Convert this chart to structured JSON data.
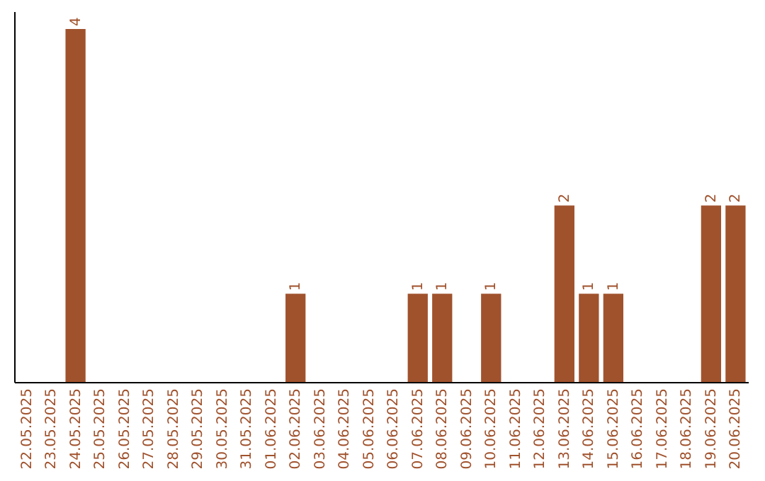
{
  "chart_data": {
    "type": "bar",
    "categories": [
      "22.05.2025",
      "23.05.2025",
      "24.05.2025",
      "25.05.2025",
      "26.05.2025",
      "27.05.2025",
      "28.05.2025",
      "29.05.2025",
      "30.05.2025",
      "31.05.2025",
      "01.06.2025",
      "02.06.2025",
      "03.06.2025",
      "04.06.2025",
      "05.06.2025",
      "06.06.2025",
      "07.06.2025",
      "08.06.2025",
      "09.06.2025",
      "10.06.2025",
      "11.06.2025",
      "12.06.2025",
      "13.06.2025",
      "14.06.2025",
      "15.06.2025",
      "16.06.2025",
      "17.06.2025",
      "18.06.2025",
      "19.06.2025",
      "20.06.2025"
    ],
    "values": [
      0,
      0,
      4,
      0,
      0,
      0,
      0,
      0,
      0,
      0,
      0,
      1,
      0,
      0,
      0,
      0,
      1,
      1,
      0,
      1,
      0,
      0,
      2,
      1,
      1,
      0,
      0,
      0,
      2,
      2
    ],
    "value_labels": [
      null,
      null,
      "4",
      null,
      null,
      null,
      null,
      null,
      null,
      null,
      null,
      "1",
      null,
      null,
      null,
      null,
      "1",
      "1",
      null,
      "1",
      null,
      null,
      "2",
      "1",
      "1",
      null,
      null,
      null,
      "2",
      "2"
    ],
    "color": "#a0522d",
    "ylim": [
      0,
      4.2
    ],
    "grid": false
  }
}
